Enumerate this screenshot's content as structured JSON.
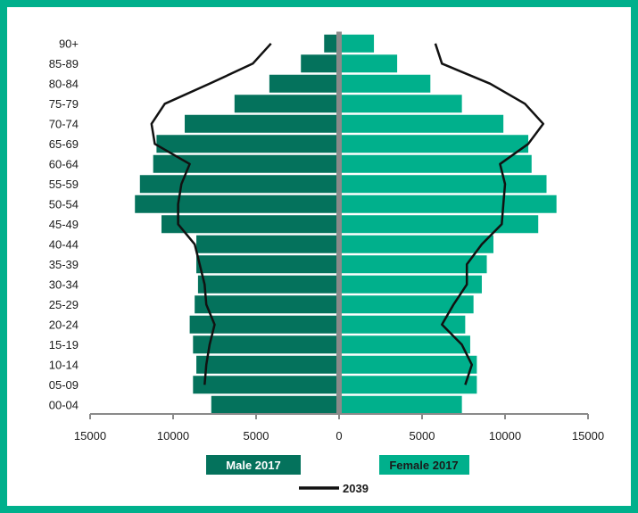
{
  "colors": {
    "male": "#04725c",
    "female": "#00b08c",
    "line_2039": "#111111",
    "axis": "#8a8a8a",
    "border": "#00b08c"
  },
  "chart_data": {
    "type": "bar",
    "orientation": "horizontal-population-pyramid",
    "categories": [
      "90+",
      "85-89",
      "80-84",
      "75-79",
      "70-74",
      "65-69",
      "60-64",
      "55-59",
      "50-54",
      "45-49",
      "40-44",
      "35-39",
      "30-34",
      "25-29",
      "20-24",
      "15-19",
      "10-14",
      "05-09",
      "00-04"
    ],
    "series": [
      {
        "name": "Male 2017",
        "values": [
          900,
          2300,
          4200,
          6300,
          9300,
          11000,
          11200,
          12000,
          12300,
          10700,
          8600,
          8600,
          8500,
          8700,
          9000,
          8800,
          8600,
          8800,
          7700
        ]
      },
      {
        "name": "Female 2017",
        "values": [
          2100,
          3500,
          5500,
          7400,
          9900,
          11400,
          11600,
          12500,
          13100,
          12000,
          9300,
          8900,
          8600,
          8100,
          7600,
          7900,
          8300,
          8300,
          7400
        ]
      },
      {
        "name": "2039",
        "type": "line",
        "male_values": [
          4100,
          5200,
          7800,
          10500,
          11300,
          11100,
          9000,
          9500,
          9700,
          9700,
          8700,
          8400,
          8100,
          8000,
          7500,
          7800,
          8000,
          8100,
          null
        ],
        "female_values": [
          5800,
          6200,
          9100,
          11200,
          12300,
          11400,
          9700,
          10000,
          9900,
          9800,
          8600,
          7700,
          7700,
          6900,
          6200,
          7400,
          8000,
          7600,
          null
        ]
      }
    ],
    "x_ticks": [
      "15000",
      "10000",
      "5000",
      "0",
      "5000",
      "10000",
      "15000"
    ],
    "xlim": [
      -15000,
      15000
    ],
    "legend": {
      "male": "Male 2017",
      "female": "Female 2017",
      "line": "2039",
      "placement": "bottom"
    }
  }
}
